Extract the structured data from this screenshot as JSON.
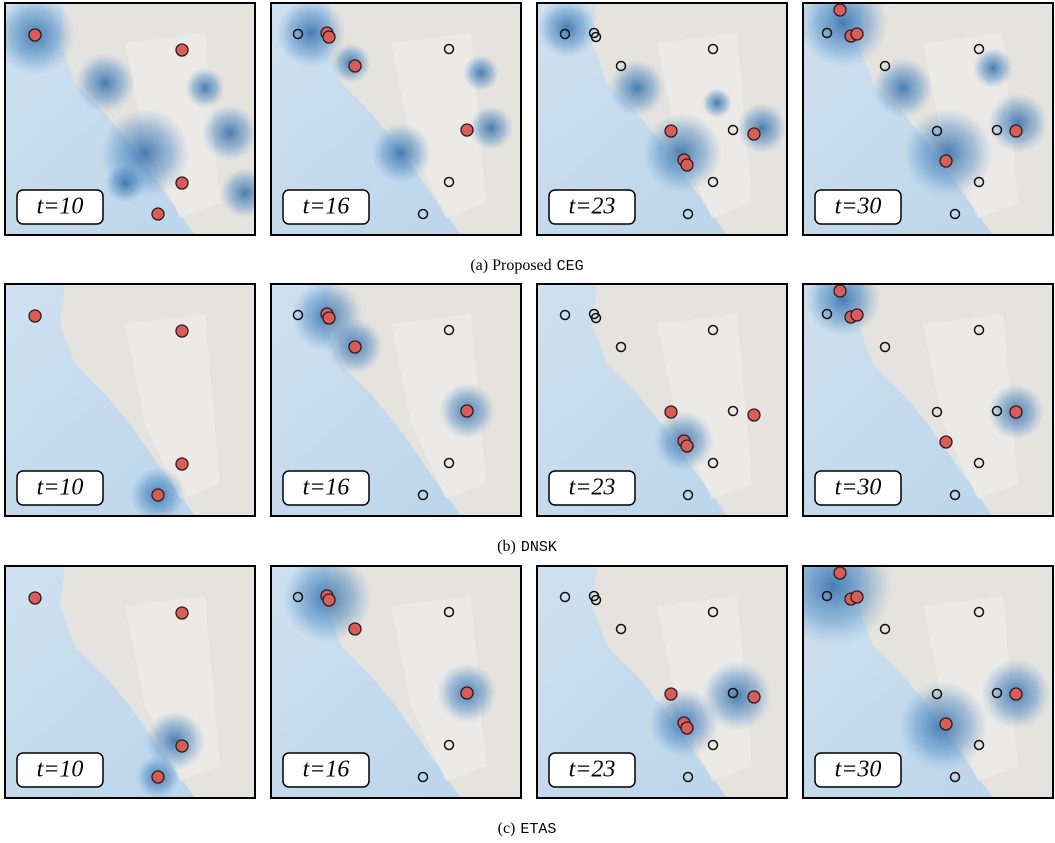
{
  "rows": [
    {
      "caption": {
        "prefix": "(a) Proposed",
        "method": "CEG"
      },
      "panels": [
        {
          "label": "t=10"
        },
        {
          "label": "t=16"
        },
        {
          "label": "t=23"
        },
        {
          "label": "t=30"
        }
      ]
    },
    {
      "caption": {
        "prefix": "(b)",
        "method": "DNSK"
      },
      "panels": [
        {
          "label": "t=10"
        },
        {
          "label": "t=16"
        },
        {
          "label": "t=23"
        },
        {
          "label": "t=30"
        }
      ]
    },
    {
      "caption": {
        "prefix": "(c)",
        "method": "ETAS"
      },
      "panels": [
        {
          "label": "t=10"
        },
        {
          "label": "t=16"
        },
        {
          "label": "t=23"
        },
        {
          "label": "t=30"
        }
      ]
    }
  ]
}
